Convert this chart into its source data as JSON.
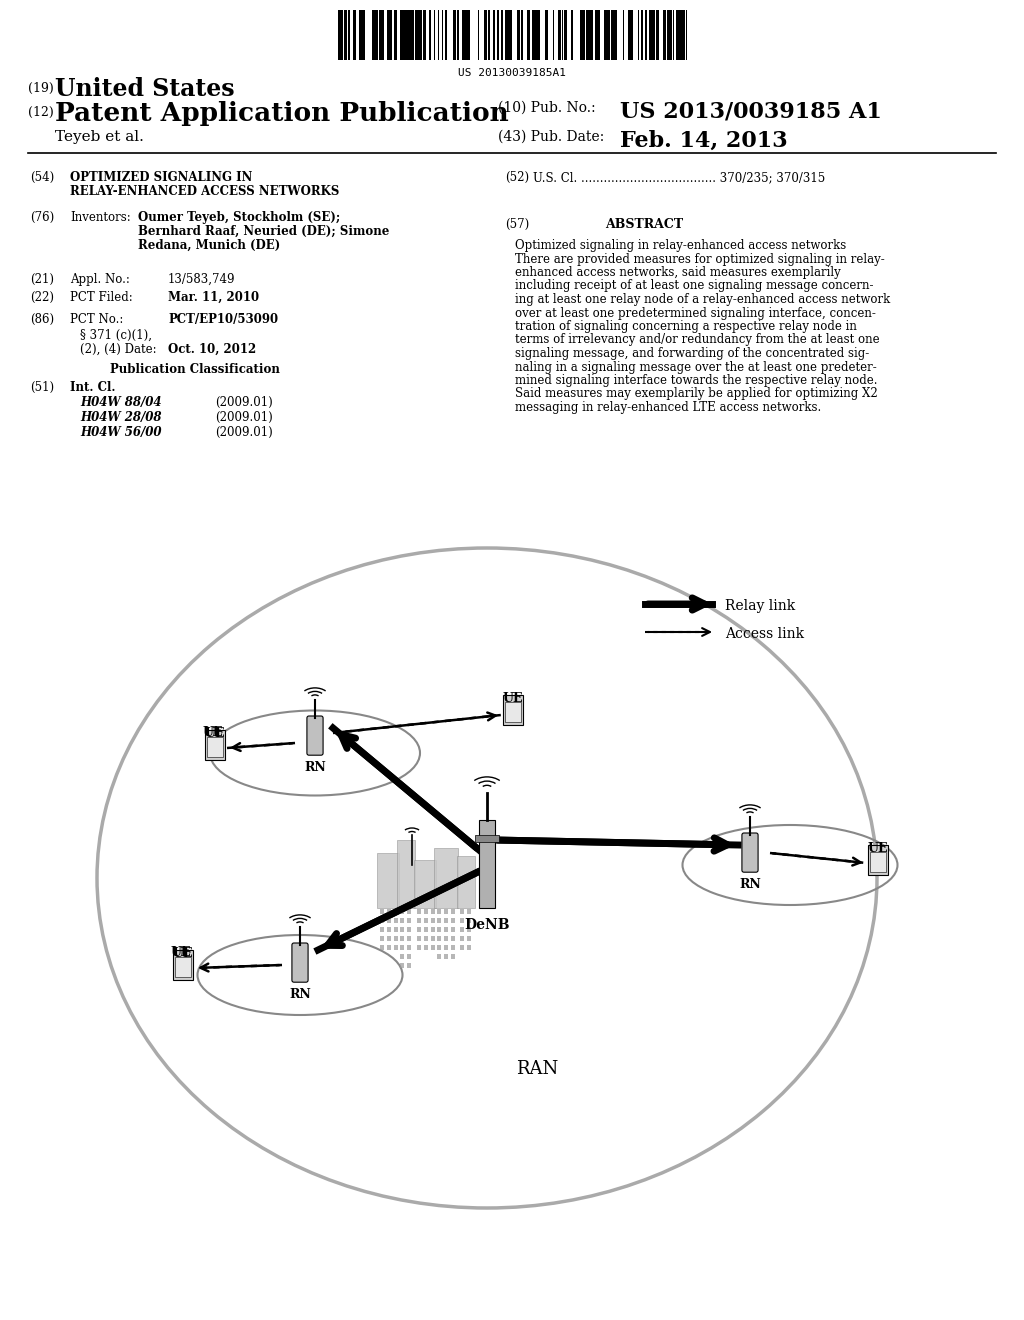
{
  "background_color": "#ffffff",
  "barcode_text": "US 20130039185A1",
  "header_number": "(19)",
  "header_country": "United States",
  "pub_type_number": "(12)",
  "pub_type": "Patent Application Publication",
  "pub_number_label": "(10) Pub. No.:",
  "pub_number": "US 2013/0039185 A1",
  "author": "Teyeb et al.",
  "pub_date_label": "(43) Pub. Date:",
  "pub_date": "Feb. 14, 2013",
  "field54_label": "(54)",
  "field54_title1": "OPTIMIZED SIGNALING IN",
  "field54_title2": "RELAY-ENHANCED ACCESS NETWORKS",
  "field52_label": "(52)",
  "field52_text": "U.S. Cl. .................................... 370/235; 370/315",
  "field76_label": "(76)",
  "field76_key": "Inventors:",
  "field76_value1": "Oumer Teyeb, Stockholm (SE);",
  "field76_value2": "Bernhard Raaf, Neuried (DE); Simone",
  "field76_value3": "Redana, Munich (DE)",
  "field57_label": "(57)",
  "field57_title": "ABSTRACT",
  "abstract_lines": [
    "Optimized signaling in relay-enhanced access networks",
    "There are provided measures for optimized signaling in relay-",
    "enhanced access networks, said measures exemplarily",
    "including receipt of at least one signaling message concern-",
    "ing at least one relay node of a relay-enhanced access network",
    "over at least one predetermined signaling interface, concen-",
    "tration of signaling concerning a respective relay node in",
    "terms of irrelevancy and/or redundancy from the at least one",
    "signaling message, and forwarding of the concentrated sig-",
    "naling in a signaling message over the at least one predeter-",
    "mined signaling interface towards the respective relay node.",
    "Said measures may exemplarily be applied for optimizing X2",
    "messaging in relay-enhanced LTE access networks."
  ],
  "field21_label": "(21)",
  "field21_key": "Appl. No.:",
  "field21_value": "13/583,749",
  "field22_label": "(22)",
  "field22_key": "PCT Filed:",
  "field22_value": "Mar. 11, 2010",
  "field86_label": "(86)",
  "field86_key": "PCT No.:",
  "field86_value": "PCT/EP10/53090",
  "field86b_key": "§ 371 (c)(1),",
  "field86b_key2": "(2), (4) Date:",
  "field86b_value": "Oct. 10, 2012",
  "pub_class_title": "Publication Classification",
  "field51_label": "(51)",
  "field51_key": "Int. Cl.",
  "int_cl_entries": [
    [
      "H04W 88/04",
      "(2009.01)"
    ],
    [
      "H04W 28/08",
      "(2009.01)"
    ],
    [
      "H04W 56/00",
      "(2009.01)"
    ]
  ],
  "diagram_title": "RAN",
  "legend_relay": "Relay link",
  "legend_access": "Access link"
}
